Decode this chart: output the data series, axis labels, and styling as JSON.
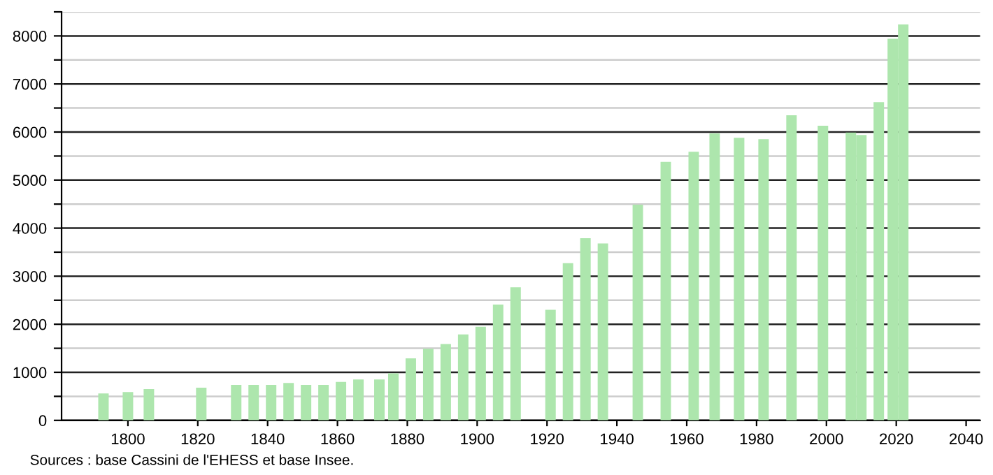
{
  "chart_data": {
    "type": "bar",
    "color": "#ade6ad",
    "x": [
      1793,
      1800,
      1806,
      1821,
      1831,
      1836,
      1841,
      1846,
      1851,
      1856,
      1861,
      1866,
      1872,
      1876,
      1881,
      1886,
      1891,
      1896,
      1901,
      1906,
      1911,
      1921,
      1926,
      1931,
      1936,
      1946,
      1954,
      1962,
      1968,
      1975,
      1982,
      1990,
      1999,
      2007,
      2010,
      2015,
      2019,
      2022
    ],
    "values": [
      560,
      590,
      650,
      680,
      740,
      740,
      740,
      780,
      740,
      740,
      800,
      850,
      850,
      980,
      1290,
      1490,
      1590,
      1790,
      1950,
      2410,
      2770,
      2300,
      3270,
      3790,
      3680,
      4490,
      5380,
      5590,
      5970,
      5880,
      5850,
      6350,
      6130,
      5990,
      5940,
      6620,
      7940,
      8240
    ],
    "xlim": [
      1781,
      2044
    ],
    "xticks": [
      1800,
      1820,
      1840,
      1860,
      1880,
      1900,
      1920,
      1940,
      1960,
      1980,
      2000,
      2020,
      2040
    ],
    "ylim": [
      0,
      8500
    ],
    "yticks": [
      0,
      {
        "value": 500,
        "label": null
      },
      1000,
      {
        "value": 1500,
        "label": null
      },
      2000,
      {
        "value": 2500,
        "label": null
      },
      3000,
      {
        "value": 3500,
        "label": null
      },
      4000,
      {
        "value": 4500,
        "label": null
      },
      5000,
      {
        "value": 5500,
        "label": null
      },
      6000,
      {
        "value": 6500,
        "label": null
      },
      7000,
      {
        "value": 7500,
        "label": null
      },
      8000,
      {
        "value": 8500,
        "label": null
      }
    ],
    "grid": "y",
    "annotations": [
      "Sources : base Cassini de l'EHESS et base Insee."
    ]
  }
}
